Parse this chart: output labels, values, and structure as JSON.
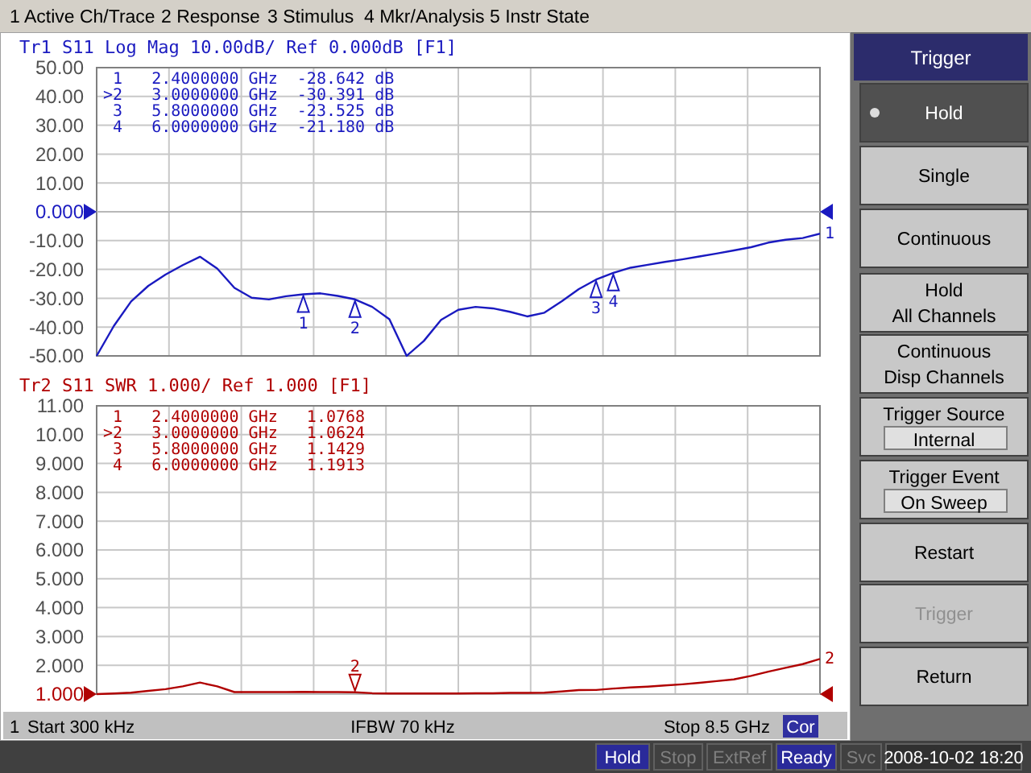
{
  "chart_data": [
    {
      "type": "line",
      "title": "Tr1 S11 Log Mag 10.00dB/ Ref 0.000dB [F1]",
      "ylim": [
        -50,
        50
      ],
      "categories": [
        null,
        null,
        null,
        null,
        null,
        null,
        null,
        null,
        null,
        null,
        null,
        null,
        null,
        null,
        null,
        null,
        null,
        null,
        null,
        null,
        null,
        null,
        null,
        null,
        null,
        null,
        null,
        null,
        null,
        null,
        null,
        null,
        null,
        null,
        null,
        null,
        null,
        null,
        null,
        null,
        null,
        null,
        null
      ],
      "yticks": [
        {
          "value": 50,
          "label": "50.00"
        },
        {
          "value": 40,
          "label": "40.00"
        },
        {
          "value": 30,
          "label": "30.00"
        },
        {
          "value": 20,
          "label": "20.00"
        },
        {
          "value": 10,
          "label": "10.00"
        },
        {
          "value": 0,
          "label": "0.000"
        },
        {
          "value": -10,
          "label": "-10.00"
        },
        {
          "value": -20,
          "label": "-20.00"
        },
        {
          "value": -30,
          "label": "-30.00"
        },
        {
          "value": -40,
          "label": "-40.00"
        },
        {
          "value": -50,
          "label": "-50.00"
        }
      ],
      "tick_labels": "y",
      "grid": true,
      "ref_lines": [
        {
          "axis": "y",
          "value": 0
        }
      ],
      "series": [
        {
          "color": "#1a1ac0",
          "values": [
            -50,
            -39.6,
            -31.1,
            -25.7,
            -21.8,
            -18.5,
            -15.6,
            -19.7,
            -26.4,
            -29.8,
            -30.4,
            -29.3,
            -28.642,
            -28.3,
            -29.2,
            -30.391,
            -33,
            -37.3,
            -50,
            -44.8,
            -37.5,
            -34,
            -33,
            -33.5,
            -34.7,
            -36.3,
            -35,
            -31.1,
            -26.8,
            -23.525,
            -21.18,
            -19.4,
            -18.4,
            -17.4,
            -16.5,
            -15.5,
            -14.5,
            -13.4,
            -12.3,
            -10.7,
            -9.7,
            -9.1,
            -7.6
          ]
        }
      ],
      "annotations": [
        " 1   2.4000000 GHz  -28.642 dB",
        ">2   3.0000000 GHz  -30.391 dB",
        " 3   5.8000000 GHz  -23.525 dB",
        " 4   6.0000000 GHz  -21.180 dB",
        "1",
        {
          "text": "1",
          "y": -28.642
        },
        {
          "text": "2",
          "y": -30.391
        },
        {
          "text": "3",
          "y": -23.525
        },
        {
          "text": "4",
          "y": -21.18
        }
      ]
    },
    {
      "type": "line",
      "title": "Tr2 S11 SWR 1.000/ Ref 1.000 [F1]",
      "ylim": [
        1,
        11
      ],
      "categories": [
        null,
        null,
        null,
        null,
        null,
        null,
        null,
        null,
        null,
        null,
        null,
        null,
        null,
        null,
        null,
        null,
        null,
        null,
        null,
        null,
        null,
        null,
        null,
        null,
        null,
        null,
        null,
        null,
        null,
        null,
        null,
        null,
        null,
        null,
        null,
        null,
        null,
        null,
        null,
        null,
        null,
        null,
        null
      ],
      "yticks": [
        {
          "value": 11,
          "label": "11.00"
        },
        {
          "value": 10,
          "label": "10.00"
        },
        {
          "value": 9,
          "label": "9.000"
        },
        {
          "value": 8,
          "label": "8.000"
        },
        {
          "value": 7,
          "label": "7.000"
        },
        {
          "value": 6,
          "label": "6.000"
        },
        {
          "value": 5,
          "label": "5.000"
        },
        {
          "value": 4,
          "label": "4.000"
        },
        {
          "value": 3,
          "label": "3.000"
        },
        {
          "value": 2,
          "label": "2.000"
        },
        {
          "value": 1,
          "label": "1.000"
        }
      ],
      "tick_labels": "y",
      "grid": true,
      "ref_lines": [
        {
          "axis": "y",
          "value": 1
        }
      ],
      "series": [
        {
          "color": "#b00000",
          "values": [
            1.0,
            1.02,
            1.05,
            1.11,
            1.17,
            1.27,
            1.4,
            1.27,
            1.07,
            1.07,
            1.07,
            1.07,
            1.0768,
            1.07,
            1.07,
            1.0624,
            1.03,
            1.02,
            1.02,
            1.02,
            1.02,
            1.02,
            1.03,
            1.03,
            1.04,
            1.04,
            1.05,
            1.09,
            1.14,
            1.1429,
            1.1913,
            1.23,
            1.26,
            1.3,
            1.34,
            1.39,
            1.45,
            1.51,
            1.63,
            1.78,
            1.91,
            2.04,
            2.22
          ]
        }
      ],
      "annotations": [
        " 1   2.4000000 GHz   1.0768",
        ">2   3.0000000 GHz   1.0624",
        " 3   5.8000000 GHz   1.1429",
        " 4   6.0000000 GHz   1.1913",
        "2",
        {
          "text": "2",
          "y": 1.0624
        }
      ]
    },
    {
      "type": "other",
      "title": "Trigger",
      "annotations": [
        "1 Active Ch/Trace",
        "2 Response",
        "3 Stimulus",
        "4 Mkr/Analysis",
        "5 Instr State",
        "Hold",
        "Single",
        "Continuous",
        "Hold\nAll Channels",
        "Continuous\nDisp Channels",
        "Trigger Source\nInternal",
        "Trigger Event\nOn Sweep",
        "Restart",
        "Trigger",
        "Return",
        "1",
        "Start 300 kHz",
        "IFBW 70 kHz",
        "Stop 8.5 GHz",
        "Cor",
        "Hold",
        "Stop",
        "ExtRef",
        "Ready",
        "Svc",
        "2008-10-02 18:20"
      ]
    }
  ]
}
